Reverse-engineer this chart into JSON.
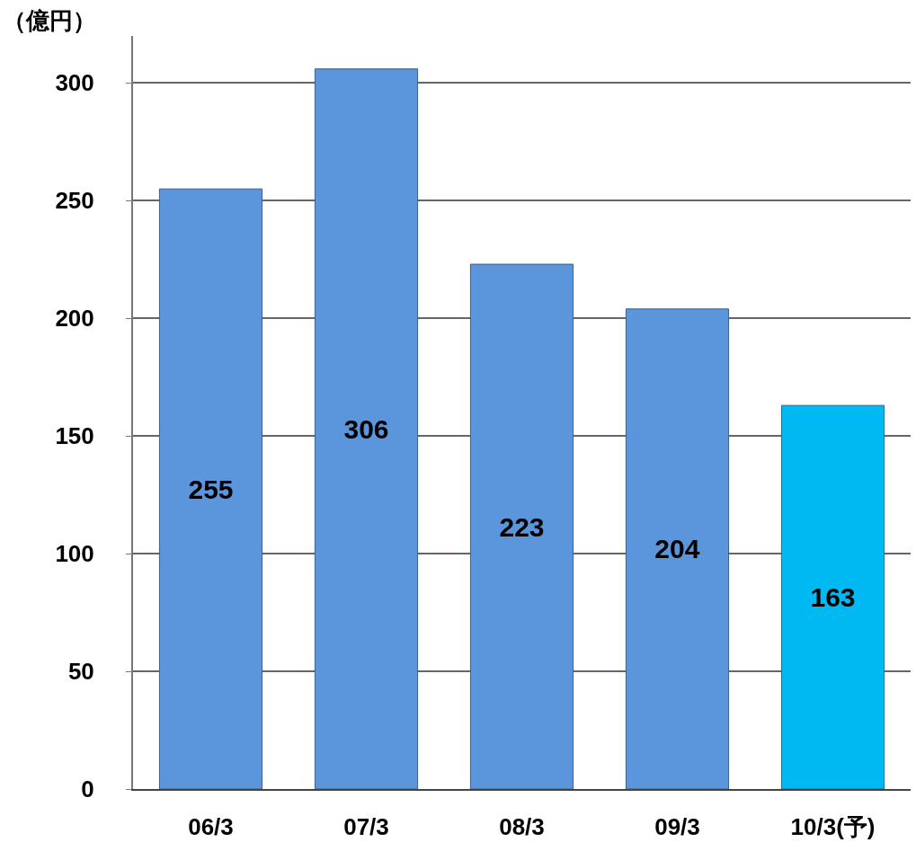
{
  "chart_data": {
    "type": "bar",
    "ylabel": "（億円）",
    "categories": [
      "06/3",
      "07/3",
      "08/3",
      "09/3",
      "10/3(予)"
    ],
    "values": [
      255,
      306,
      223,
      204,
      163
    ],
    "colors": [
      "#5b96dc",
      "#5b96dc",
      "#5b96dc",
      "#5b96dc",
      "#00b9f2"
    ],
    "ylim": [
      0,
      320
    ],
    "yticks": [
      0,
      50,
      100,
      150,
      200,
      250,
      300
    ],
    "grid": "y",
    "data_labels": true,
    "legend": false
  }
}
